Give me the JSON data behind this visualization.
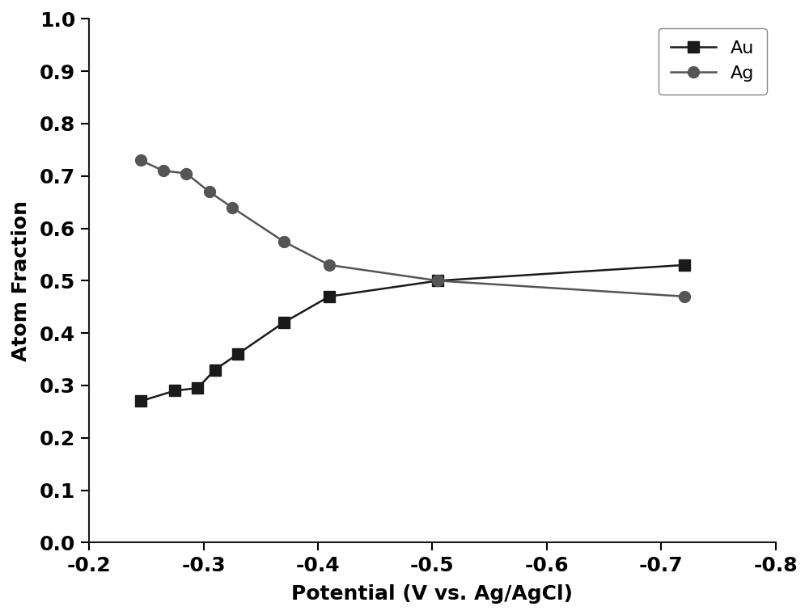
{
  "Au_x": [
    -0.245,
    -0.275,
    -0.295,
    -0.31,
    -0.33,
    -0.37,
    -0.41,
    -0.505,
    -0.72
  ],
  "Au_y": [
    0.27,
    0.29,
    0.295,
    0.33,
    0.36,
    0.42,
    0.47,
    0.5,
    0.53
  ],
  "Ag_x": [
    -0.245,
    -0.265,
    -0.285,
    -0.305,
    -0.325,
    -0.37,
    -0.41,
    -0.505,
    -0.72
  ],
  "Ag_y": [
    0.73,
    0.71,
    0.705,
    0.67,
    0.64,
    0.575,
    0.53,
    0.5,
    0.47
  ],
  "Au_color": "#1a1a1a",
  "Ag_color": "#555555",
  "xlabel": "Potential (V vs. Ag/AgCl)",
  "ylabel": "Atom Fraction",
  "xlim": [
    -0.2,
    -0.8
  ],
  "ylim": [
    0.0,
    1.0
  ],
  "xticks": [
    -0.2,
    -0.3,
    -0.4,
    -0.5,
    -0.6,
    -0.7,
    -0.8
  ],
  "yticks": [
    0.0,
    0.1,
    0.2,
    0.3,
    0.4,
    0.5,
    0.6,
    0.7,
    0.8,
    0.9,
    1.0
  ],
  "legend_Au": "Au",
  "legend_Ag": "Ag",
  "Au_marker": "s",
  "Ag_marker": "o",
  "marker_size": 10,
  "linewidth": 1.8,
  "xlabel_fontsize": 18,
  "ylabel_fontsize": 18,
  "tick_fontsize": 18,
  "legend_fontsize": 16,
  "background_color": "#ffffff",
  "spine_linewidth": 1.5
}
